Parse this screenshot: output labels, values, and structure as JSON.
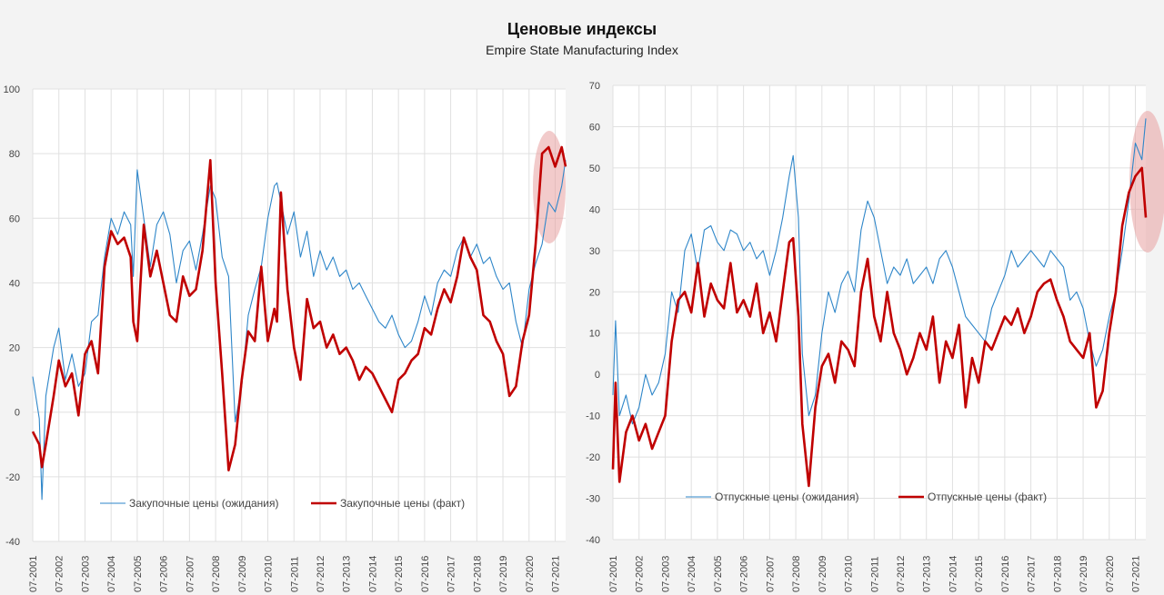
{
  "title": "Ценовые индексы",
  "subtitle": "Empire State Manufacturing Index",
  "colors": {
    "expected": "#2e86c9",
    "actual": "#c00000",
    "highlight": "#e8a0a0",
    "grid": "#e0e0e0",
    "plot_bg": "#ffffff"
  },
  "chart_data": [
    {
      "type": "line",
      "ylim": [
        -40,
        100
      ],
      "yticks": [
        "100",
        "80",
        "60",
        "40",
        "20",
        "0",
        "-20",
        "-40"
      ],
      "xticks": [
        "07-2001",
        "07-2002",
        "07-2003",
        "07-2004",
        "07-2005",
        "07-2006",
        "07-2007",
        "07-2008",
        "07-2009",
        "07-2010",
        "07-2011",
        "07-2012",
        "07-2013",
        "07-2014",
        "07-2015",
        "07-2016",
        "07-2017",
        "07-2018",
        "07-2019",
        "07-2020",
        "07-2021"
      ],
      "x_start": 2001.5,
      "x_end": 2021.9,
      "legend": "bottom",
      "grid": true,
      "series": [
        {
          "name": "Закупочные цены (ожидания)",
          "color": "expected",
          "x": [
            2001.5,
            2001.75,
            2001.85,
            2002.0,
            2002.3,
            2002.5,
            2002.75,
            2003.0,
            2003.25,
            2003.5,
            2003.75,
            2004.0,
            2004.25,
            2004.5,
            2004.75,
            2005.0,
            2005.25,
            2005.35,
            2005.5,
            2005.75,
            2006.0,
            2006.25,
            2006.5,
            2006.75,
            2007.0,
            2007.25,
            2007.5,
            2007.75,
            2008.0,
            2008.3,
            2008.5,
            2008.75,
            2009.0,
            2009.25,
            2009.5,
            2009.75,
            2010.0,
            2010.25,
            2010.5,
            2010.75,
            2010.85,
            2011.0,
            2011.25,
            2011.5,
            2011.75,
            2012.0,
            2012.25,
            2012.5,
            2012.75,
            2013.0,
            2013.25,
            2013.5,
            2013.75,
            2014.0,
            2014.25,
            2014.5,
            2014.75,
            2015.0,
            2015.25,
            2015.5,
            2015.75,
            2016.0,
            2016.25,
            2016.5,
            2016.75,
            2017.0,
            2017.25,
            2017.5,
            2017.75,
            2018.0,
            2018.25,
            2018.5,
            2018.75,
            2019.0,
            2019.25,
            2019.5,
            2019.75,
            2020.0,
            2020.25,
            2020.5,
            2020.75,
            2021.0,
            2021.25,
            2021.5,
            2021.75,
            2021.9
          ],
          "values": [
            11,
            -2,
            -27,
            5,
            20,
            26,
            10,
            18,
            8,
            12,
            28,
            30,
            48,
            60,
            55,
            62,
            58,
            42,
            75,
            60,
            45,
            58,
            62,
            55,
            40,
            50,
            53,
            44,
            55,
            70,
            66,
            48,
            42,
            -3,
            8,
            30,
            38,
            45,
            60,
            70,
            71,
            65,
            55,
            62,
            48,
            56,
            42,
            50,
            44,
            48,
            42,
            44,
            38,
            40,
            36,
            32,
            28,
            26,
            30,
            24,
            20,
            22,
            28,
            36,
            30,
            40,
            44,
            42,
            50,
            54,
            48,
            52,
            46,
            48,
            42,
            38,
            40,
            28,
            20,
            38,
            46,
            52,
            65,
            62,
            70,
            78
          ]
        },
        {
          "name": "Закупочные цены (факт)",
          "color": "actual",
          "x": [
            2001.5,
            2001.75,
            2001.85,
            2002.0,
            2002.3,
            2002.5,
            2002.75,
            2003.0,
            2003.25,
            2003.5,
            2003.75,
            2004.0,
            2004.25,
            2004.5,
            2004.75,
            2005.0,
            2005.25,
            2005.35,
            2005.5,
            2005.75,
            2006.0,
            2006.25,
            2006.5,
            2006.75,
            2007.0,
            2007.25,
            2007.5,
            2007.75,
            2008.0,
            2008.3,
            2008.5,
            2008.75,
            2009.0,
            2009.25,
            2009.5,
            2009.75,
            2010.0,
            2010.25,
            2010.5,
            2010.75,
            2010.85,
            2011.0,
            2011.25,
            2011.5,
            2011.75,
            2012.0,
            2012.25,
            2012.5,
            2012.75,
            2013.0,
            2013.25,
            2013.5,
            2013.75,
            2014.0,
            2014.25,
            2014.5,
            2014.75,
            2015.0,
            2015.25,
            2015.5,
            2015.75,
            2016.0,
            2016.25,
            2016.5,
            2016.75,
            2017.0,
            2017.25,
            2017.5,
            2017.75,
            2018.0,
            2018.25,
            2018.5,
            2018.75,
            2019.0,
            2019.25,
            2019.5,
            2019.75,
            2020.0,
            2020.25,
            2020.5,
            2020.75,
            2021.0,
            2021.25,
            2021.5,
            2021.75,
            2021.9
          ],
          "values": [
            -6,
            -10,
            -17,
            -10,
            5,
            16,
            8,
            12,
            -1,
            18,
            22,
            12,
            45,
            56,
            52,
            54,
            48,
            28,
            22,
            58,
            42,
            50,
            40,
            30,
            28,
            42,
            36,
            38,
            50,
            78,
            40,
            12,
            -18,
            -10,
            10,
            25,
            22,
            45,
            22,
            32,
            28,
            68,
            38,
            20,
            10,
            35,
            26,
            28,
            20,
            24,
            18,
            20,
            16,
            10,
            14,
            12,
            8,
            4,
            0,
            10,
            12,
            16,
            18,
            26,
            24,
            32,
            38,
            34,
            42,
            54,
            48,
            44,
            30,
            28,
            22,
            18,
            5,
            8,
            22,
            30,
            52,
            80,
            82,
            76,
            82,
            76
          ]
        }
      ]
    },
    {
      "type": "line",
      "ylim": [
        -40,
        70
      ],
      "yticks": [
        "70",
        "60",
        "50",
        "40",
        "30",
        "20",
        "10",
        "0",
        "-10",
        "-20",
        "-30",
        "-40"
      ],
      "xticks": [
        "07-2001",
        "07-2002",
        "07-2003",
        "07-2004",
        "07-2005",
        "07-2006",
        "07-2007",
        "07-2008",
        "07-2009",
        "07-2010",
        "07-2011",
        "07-2012",
        "07-2013",
        "07-2014",
        "07-2015",
        "07-2016",
        "07-2017",
        "07-2018",
        "07-2019",
        "07-2020",
        "07-2021"
      ],
      "x_start": 2001.5,
      "x_end": 2021.9,
      "legend": "bottom",
      "grid": true,
      "series": [
        {
          "name": "Отпускные цены (ожидания)",
          "color": "expected",
          "x": [
            2001.5,
            2001.6,
            2001.75,
            2002.0,
            2002.25,
            2002.5,
            2002.75,
            2003.0,
            2003.25,
            2003.5,
            2003.75,
            2004.0,
            2004.25,
            2004.5,
            2004.75,
            2005.0,
            2005.25,
            2005.5,
            2005.75,
            2006.0,
            2006.25,
            2006.5,
            2006.75,
            2007.0,
            2007.25,
            2007.5,
            2007.75,
            2008.0,
            2008.25,
            2008.4,
            2008.6,
            2008.75,
            2009.0,
            2009.25,
            2009.5,
            2009.75,
            2010.0,
            2010.25,
            2010.5,
            2010.75,
            2011.0,
            2011.25,
            2011.5,
            2011.75,
            2012.0,
            2012.25,
            2012.5,
            2012.75,
            2013.0,
            2013.25,
            2013.5,
            2013.75,
            2014.0,
            2014.25,
            2014.5,
            2014.75,
            2015.0,
            2015.25,
            2015.5,
            2015.75,
            2016.0,
            2016.25,
            2016.5,
            2016.75,
            2017.0,
            2017.25,
            2017.5,
            2017.75,
            2018.0,
            2018.25,
            2018.5,
            2018.75,
            2019.0,
            2019.25,
            2019.5,
            2019.75,
            2020.0,
            2020.25,
            2020.5,
            2020.75,
            2021.0,
            2021.25,
            2021.5,
            2021.75,
            2021.9
          ],
          "values": [
            -5,
            13,
            -10,
            -5,
            -12,
            -8,
            0,
            -5,
            -2,
            5,
            20,
            15,
            30,
            34,
            25,
            35,
            36,
            32,
            30,
            35,
            34,
            30,
            32,
            28,
            30,
            24,
            30,
            38,
            48,
            53,
            38,
            5,
            -10,
            -5,
            10,
            20,
            15,
            22,
            25,
            20,
            35,
            42,
            38,
            30,
            22,
            26,
            24,
            28,
            22,
            24,
            26,
            22,
            28,
            30,
            26,
            20,
            14,
            12,
            10,
            8,
            16,
            20,
            24,
            30,
            26,
            28,
            30,
            28,
            26,
            30,
            28,
            26,
            18,
            20,
            16,
            8,
            2,
            6,
            14,
            20,
            30,
            42,
            56,
            52,
            62
          ]
        },
        {
          "name": "Отпускные цены (факт)",
          "color": "actual",
          "x": [
            2001.5,
            2001.6,
            2001.75,
            2002.0,
            2002.25,
            2002.5,
            2002.75,
            2003.0,
            2003.25,
            2003.5,
            2003.75,
            2004.0,
            2004.25,
            2004.5,
            2004.75,
            2005.0,
            2005.25,
            2005.5,
            2005.75,
            2006.0,
            2006.25,
            2006.5,
            2006.75,
            2007.0,
            2007.25,
            2007.5,
            2007.75,
            2008.0,
            2008.25,
            2008.4,
            2008.6,
            2008.75,
            2009.0,
            2009.25,
            2009.5,
            2009.75,
            2010.0,
            2010.25,
            2010.5,
            2010.75,
            2011.0,
            2011.25,
            2011.5,
            2011.75,
            2012.0,
            2012.25,
            2012.5,
            2012.75,
            2013.0,
            2013.25,
            2013.5,
            2013.75,
            2014.0,
            2014.25,
            2014.5,
            2014.75,
            2015.0,
            2015.25,
            2015.5,
            2015.75,
            2016.0,
            2016.25,
            2016.5,
            2016.75,
            2017.0,
            2017.25,
            2017.5,
            2017.75,
            2018.0,
            2018.25,
            2018.5,
            2018.75,
            2019.0,
            2019.25,
            2019.5,
            2019.75,
            2020.0,
            2020.25,
            2020.5,
            2020.75,
            2021.0,
            2021.25,
            2021.5,
            2021.75,
            2021.9
          ],
          "values": [
            -23,
            -2,
            -26,
            -14,
            -10,
            -16,
            -12,
            -18,
            -14,
            -10,
            8,
            18,
            20,
            15,
            27,
            14,
            22,
            18,
            16,
            27,
            15,
            18,
            14,
            22,
            10,
            15,
            8,
            20,
            32,
            33,
            14,
            -12,
            -27,
            -8,
            2,
            5,
            -2,
            8,
            6,
            2,
            20,
            28,
            14,
            8,
            20,
            10,
            6,
            0,
            4,
            10,
            6,
            14,
            -2,
            8,
            4,
            12,
            -8,
            4,
            -2,
            8,
            6,
            10,
            14,
            12,
            16,
            10,
            14,
            20,
            22,
            23,
            18,
            14,
            8,
            6,
            4,
            10,
            -8,
            -4,
            10,
            20,
            36,
            44,
            48,
            50,
            38
          ]
        }
      ]
    }
  ]
}
